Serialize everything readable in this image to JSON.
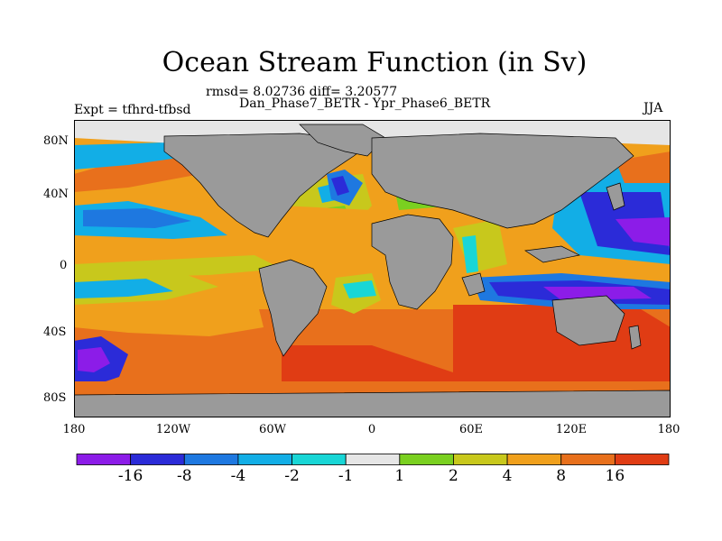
{
  "title": "Ocean Stream Function (in Sv)",
  "subtitle_stats": "rmsd= 8.02736 diff= 3.20577",
  "subtitle_runs": "Dan_Phase7_BETR - Ypr_Phase6_BETR",
  "experiment_label": "Expt = tfhrd-tfbsd",
  "season_label": "JJA",
  "lat_labels": [
    "80N",
    "40N",
    "0",
    "40S",
    "80S"
  ],
  "lon_labels": [
    "180",
    "120W",
    "60W",
    "0",
    "60E",
    "120E",
    "180"
  ],
  "colorbar": {
    "labels": [
      "-16",
      "-8",
      "-4",
      "-2",
      "-1",
      "1",
      "2",
      "4",
      "8",
      "16"
    ],
    "colors": [
      "#8c1ce8",
      "#2b2bd8",
      "#1e78e0",
      "#12aee6",
      "#19d6d6",
      "#e6e6e6",
      "#7ad020",
      "#c8c81c",
      "#f0a01c",
      "#e8701c",
      "#e03c14"
    ]
  },
  "land_color": "#9a9a9a"
}
